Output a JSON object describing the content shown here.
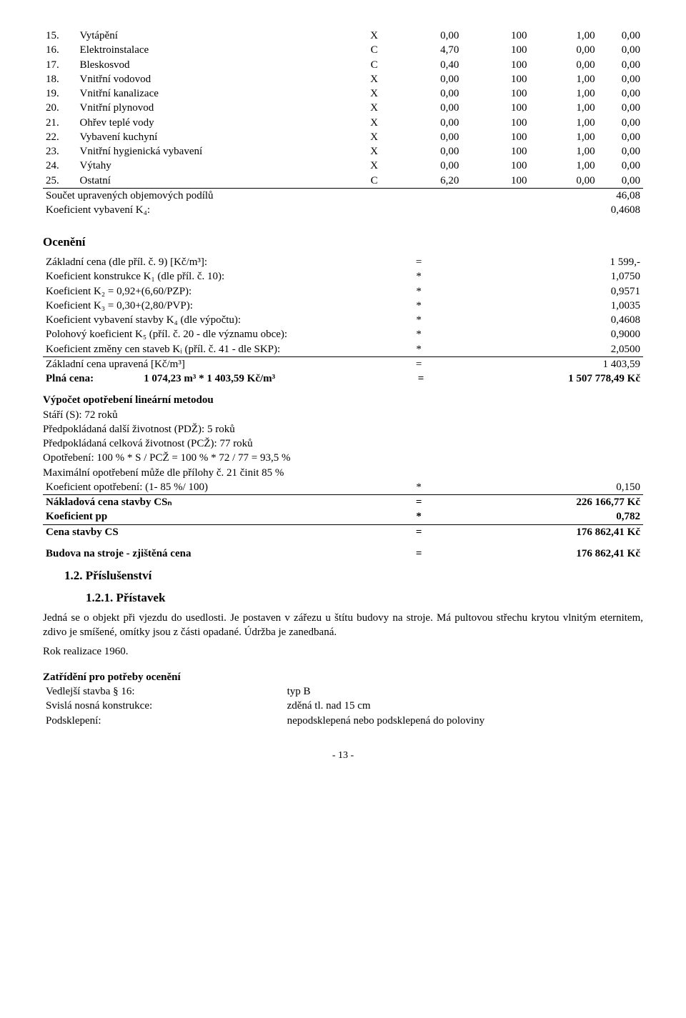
{
  "items": [
    {
      "n": "15.",
      "label": "Vytápění",
      "c1": "X",
      "c2": "0,00",
      "c3": "100",
      "c4": "1,00",
      "c5": "0,00"
    },
    {
      "n": "16.",
      "label": "Elektroinstalace",
      "c1": "C",
      "c2": "4,70",
      "c3": "100",
      "c4": "0,00",
      "c5": "0,00"
    },
    {
      "n": "17.",
      "label": "Bleskosvod",
      "c1": "C",
      "c2": "0,40",
      "c3": "100",
      "c4": "0,00",
      "c5": "0,00"
    },
    {
      "n": "18.",
      "label": "Vnitřní vodovod",
      "c1": "X",
      "c2": "0,00",
      "c3": "100",
      "c4": "1,00",
      "c5": "0,00"
    },
    {
      "n": "19.",
      "label": "Vnitřní kanalizace",
      "c1": "X",
      "c2": "0,00",
      "c3": "100",
      "c4": "1,00",
      "c5": "0,00"
    },
    {
      "n": "20.",
      "label": "Vnitřní plynovod",
      "c1": "X",
      "c2": "0,00",
      "c3": "100",
      "c4": "1,00",
      "c5": "0,00"
    },
    {
      "n": "21.",
      "label": "Ohřev teplé vody",
      "c1": "X",
      "c2": "0,00",
      "c3": "100",
      "c4": "1,00",
      "c5": "0,00"
    },
    {
      "n": "22.",
      "label": "Vybavení kuchyní",
      "c1": "X",
      "c2": "0,00",
      "c3": "100",
      "c4": "1,00",
      "c5": "0,00"
    },
    {
      "n": "23.",
      "label": "Vnitřní hygienická vybavení",
      "c1": "X",
      "c2": "0,00",
      "c3": "100",
      "c4": "1,00",
      "c5": "0,00"
    },
    {
      "n": "24.",
      "label": "Výtahy",
      "c1": "X",
      "c2": "0,00",
      "c3": "100",
      "c4": "1,00",
      "c5": "0,00"
    },
    {
      "n": "25.",
      "label": "Ostatní",
      "c1": "C",
      "c2": "6,20",
      "c3": "100",
      "c4": "0,00",
      "c5": "0,00"
    }
  ],
  "sum": {
    "row1_label": "Součet upravených objemových podílů",
    "row1_val": "46,08",
    "row2_label": "Koeficient vybavení K₄:",
    "row2_val": "0,4608"
  },
  "oceneni_title": "Ocenění",
  "calc": [
    {
      "label": "Základní cena (dle příl. č. 9) [Kč/m³]:",
      "op": "=",
      "val": "1 599,-",
      "bold": false
    },
    {
      "label": "Koeficient konstrukce K₁ (dle příl. č. 10):",
      "op": "*",
      "val": "1,0750",
      "bold": false
    },
    {
      "label": "Koeficient K₂ = 0,92+(6,60/PZP):",
      "op": "*",
      "val": "0,9571",
      "bold": false
    },
    {
      "label": "Koeficient K₃ = 0,30+(2,80/PVP):",
      "op": "*",
      "val": "1,0035",
      "bold": false
    },
    {
      "label": "Koeficient vybavení stavby K₄ (dle výpočtu):",
      "op": "*",
      "val": "0,4608",
      "bold": false
    },
    {
      "label": "Polohový koeficient K₅ (příl. č. 20 - dle významu obce):",
      "op": "*",
      "val": "0,9000",
      "bold": false
    },
    {
      "label": "Koeficient změny cen staveb Kᵢ (příl. č. 41 - dle SKP):",
      "op": "*",
      "val": "2,0500",
      "bold": false
    },
    {
      "label": "Základní cena upravená [Kč/m³]",
      "op": "=",
      "val": "1 403,59",
      "bold": false
    }
  ],
  "plna": {
    "label_pre": "Plná cena:",
    "label_val": "1 074,23 m³ * 1 403,59 Kč/m³",
    "op": "=",
    "val": "1 507 778,49 Kč"
  },
  "opot_title": "Výpočet opotřebení lineární metodou",
  "opot_lines": [
    "Stáří (S): 72 roků",
    "Předpokládaná další životnost (PDŽ): 5 roků",
    "Předpokládaná celková životnost (PCŽ): 77 roků",
    "Opotřebení: 100 % * S / PCŽ = 100 % * 72 / 77 = 93,5 %",
    "Maximální opotřebení může dle přílohy č. 21 činit 85 %"
  ],
  "opot_rows": [
    {
      "label": "Koeficient opotřebení: (1- 85 %/ 100)",
      "op": "*",
      "val": "0,150",
      "bold": false,
      "underline": true
    },
    {
      "label": "Nákladová cena stavby CSₙ",
      "op": "=",
      "val": "226 166,77 Kč",
      "bold": true,
      "underline": false
    },
    {
      "label": "Koeficient pp",
      "op": "*",
      "val": "0,782",
      "bold": true,
      "underline": true
    },
    {
      "label": "Cena stavby CS",
      "op": "=",
      "val": "176 862,41 Kč",
      "bold": true,
      "underline": false
    }
  ],
  "result": {
    "label": "Budova na stroje - zjištěná cena",
    "op": "=",
    "val": "176 862,41 Kč"
  },
  "sec12": "1.2. Příslušenství",
  "sec121": "1.2.1. Přístavek",
  "sec121_text": "Jedná se o objekt při vjezdu do usedlosti. Je postaven v zářezu u štítu budovy na stroje. Má pultovou střechu krytou vlnitým eternitem, zdivo je smíšené, omítky jsou z části opadané. Údržba je zanedbaná.",
  "sec121_year": "Rok realizace 1960.",
  "zatr_title": "Zatřídění pro potřeby ocenění",
  "zatr_rows": [
    {
      "l": "Vedlejší stavba § 16:",
      "r": "typ B"
    },
    {
      "l": "Svislá nosná konstrukce:",
      "r": "zděná tl. nad 15 cm"
    },
    {
      "l": "Podsklepení:",
      "r": "nepodsklepená nebo podsklepená do poloviny"
    }
  ],
  "page": "- 13 -"
}
